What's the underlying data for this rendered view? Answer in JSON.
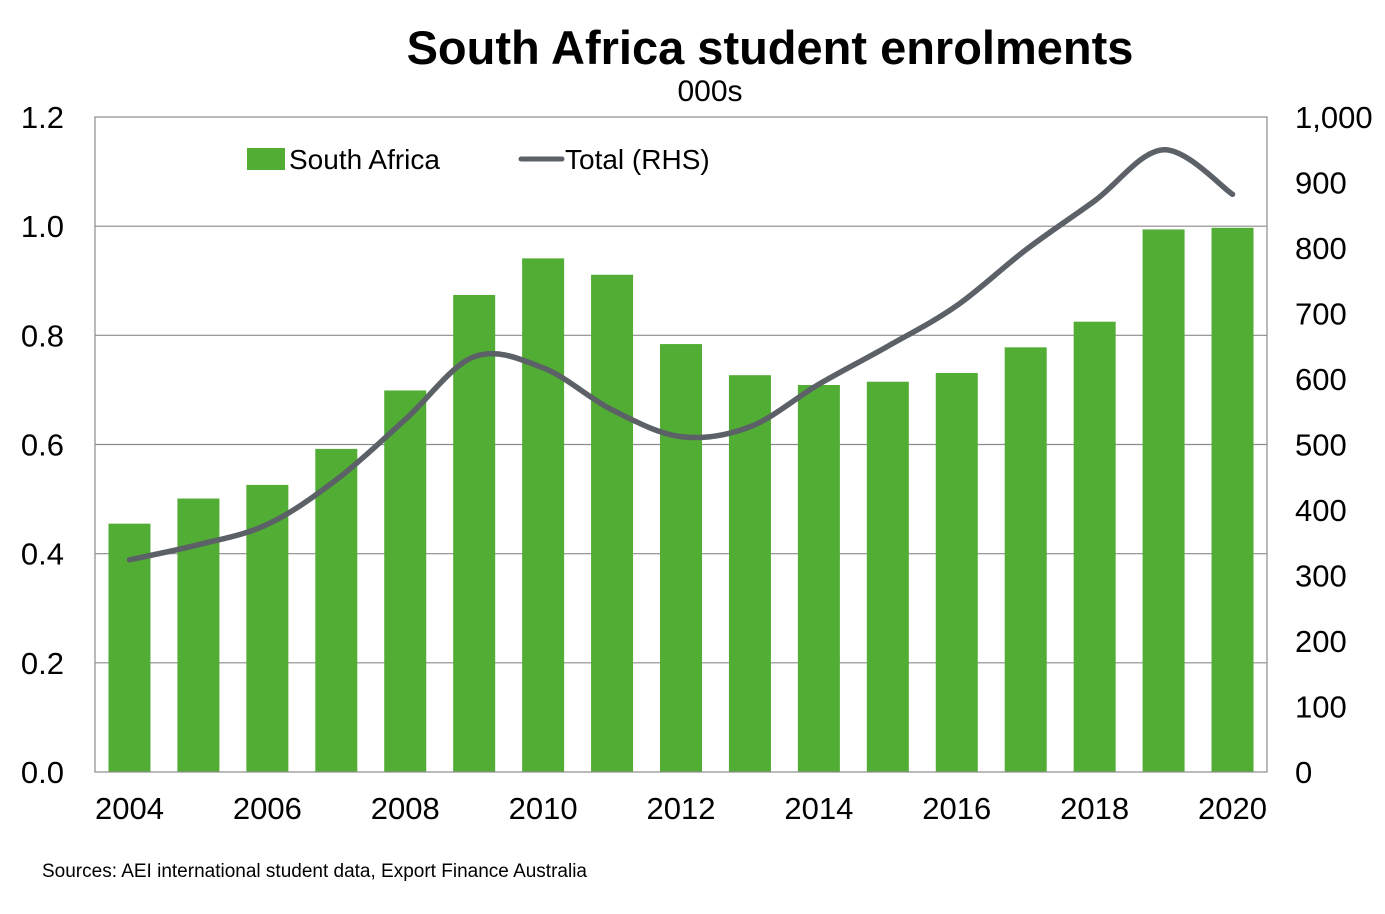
{
  "chart_data": {
    "type": "bar",
    "title": "South Africa student enrolments",
    "subtitle": "000s",
    "source": "Sources: AEI international student data, Export Finance Australia",
    "x": [
      2004,
      2005,
      2006,
      2007,
      2008,
      2009,
      2010,
      2011,
      2012,
      2013,
      2014,
      2015,
      2016,
      2017,
      2018,
      2019,
      2020
    ],
    "x_tick_labels": [
      "2004",
      "2006",
      "2008",
      "2010",
      "2012",
      "2014",
      "2016",
      "2018",
      "2020"
    ],
    "y_left_tick_labels": [
      "0.0",
      "0.2",
      "0.4",
      "0.6",
      "0.8",
      "1.0",
      "1.2"
    ],
    "y_right_tick_labels": [
      "0",
      "100",
      "200",
      "300",
      "400",
      "500",
      "600",
      "700",
      "800",
      "900",
      "1,000"
    ],
    "ylim_left": [
      0,
      1.2
    ],
    "ylim_right": [
      0,
      1000
    ],
    "grid": true,
    "legend_position": "top-left",
    "series": [
      {
        "name": "South Africa",
        "type": "bar",
        "axis": "left",
        "color": "#52ad34",
        "values": [
          0.455,
          0.501,
          0.526,
          0.592,
          0.699,
          0.874,
          0.941,
          0.911,
          0.784,
          0.727,
          0.709,
          0.715,
          0.731,
          0.778,
          0.825,
          0.994,
          0.997
        ]
      },
      {
        "name": "Total (RHS)",
        "type": "line",
        "axis": "right",
        "color": "#5b6166",
        "values": [
          324,
          347,
          378,
          446,
          538,
          634,
          617,
          553,
          512,
          527,
          592,
          650,
          712,
          797,
          872,
          950,
          882
        ]
      }
    ]
  }
}
